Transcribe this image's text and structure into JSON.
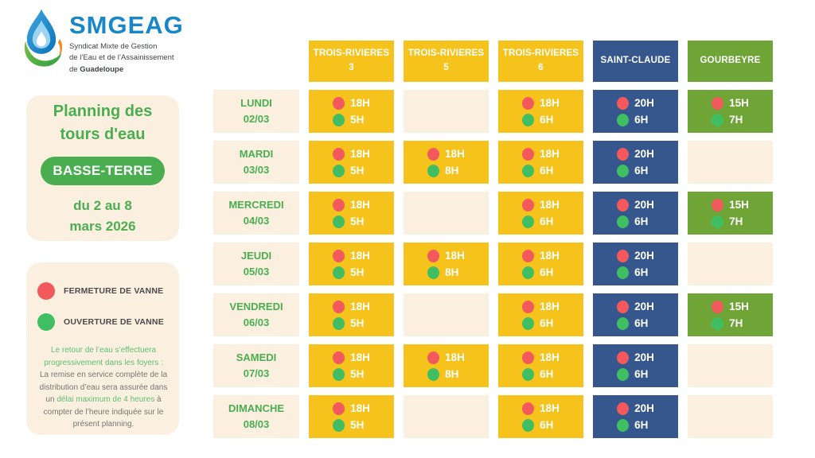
{
  "logo": {
    "brand": "SMGEAG",
    "tagline_lines": [
      "Syndicat Mixte de Gestion",
      "de l’Eau et de l’Assainissement"
    ],
    "tagline_line3_prefix": "de ",
    "tagline_line3_bold": "Guadeloupe"
  },
  "title_panel": {
    "title_line1": "Planning des",
    "title_line2": "tours d'eau",
    "badge": "BASSE-TERRE",
    "date_line1": "du 2 au 8",
    "date_line2": "mars 2026"
  },
  "legend": {
    "items": [
      {
        "label": "FERMETURE DE VANNE",
        "color_key": "red_dot"
      },
      {
        "label": "OUVERTURE DE VANNE",
        "color_key": "green_dot"
      }
    ],
    "note": {
      "green1": "Le retour de l’eau s’effectuera progressivement dans les foyers :",
      "gray1": "La remise en service complète de la distribution d’eau sera assurée dans un ",
      "green2": "délai maximum de 4 heures",
      "gray2": " à compter de l’heure indiquée sur le présent planning."
    }
  },
  "colors": {
    "yellow": "#F6C31C",
    "blue": "#35578E",
    "green_cell": "#6FA436",
    "cream": "#FBF0E0",
    "red_dot": "#F2595C",
    "green_dot": "#3FBE63",
    "accent_green": "#4AAE51",
    "brand_blue": "#1787C8",
    "note_green": "#5BBF72"
  },
  "schedule": {
    "columns": [
      {
        "label_line1": "TROIS-RIVIERES",
        "label_line2": "3",
        "color_key": "yellow"
      },
      {
        "label_line1": "TROIS-RIVIERES",
        "label_line2": "5",
        "color_key": "yellow"
      },
      {
        "label_line1": "TROIS-RIVIERES",
        "label_line2": "6",
        "color_key": "yellow"
      },
      {
        "label_line1": "SAINT-CLAUDE",
        "label_line2": "",
        "color_key": "blue"
      },
      {
        "label_line1": "GOURBEYRE",
        "label_line2": "",
        "color_key": "green_cell"
      }
    ],
    "rows": [
      {
        "day": "LUNDI",
        "date": "02/03",
        "cells": [
          {
            "close": "18H",
            "open": "5H"
          },
          null,
          {
            "close": "18H",
            "open": "6H"
          },
          {
            "close": "20H",
            "open": "6H"
          },
          {
            "close": "15H",
            "open": "7H"
          }
        ]
      },
      {
        "day": "MARDI",
        "date": "03/03",
        "cells": [
          {
            "close": "18H",
            "open": "5H"
          },
          {
            "close": "18H",
            "open": "8H"
          },
          {
            "close": "18H",
            "open": "6H"
          },
          {
            "close": "20H",
            "open": "6H"
          },
          null
        ]
      },
      {
        "day": "MERCREDI",
        "date": "04/03",
        "cells": [
          {
            "close": "18H",
            "open": "5H"
          },
          null,
          {
            "close": "18H",
            "open": "6H"
          },
          {
            "close": "20H",
            "open": "6H"
          },
          {
            "close": "15H",
            "open": "7H"
          }
        ]
      },
      {
        "day": "JEUDI",
        "date": "05/03",
        "cells": [
          {
            "close": "18H",
            "open": "5H"
          },
          {
            "close": "18H",
            "open": "8H"
          },
          {
            "close": "18H",
            "open": "6H"
          },
          {
            "close": "20H",
            "open": "6H"
          },
          null
        ]
      },
      {
        "day": "VENDREDI",
        "date": "06/03",
        "cells": [
          {
            "close": "18H",
            "open": "5H"
          },
          null,
          {
            "close": "18H",
            "open": "6H"
          },
          {
            "close": "20H",
            "open": "6H"
          },
          {
            "close": "15H",
            "open": "7H"
          }
        ]
      },
      {
        "day": "SAMEDI",
        "date": "07/03",
        "cells": [
          {
            "close": "18H",
            "open": "5H"
          },
          {
            "close": "18H",
            "open": "8H"
          },
          {
            "close": "18H",
            "open": "6H"
          },
          {
            "close": "20H",
            "open": "6H"
          },
          null
        ]
      },
      {
        "day": "DIMANCHE",
        "date": "08/03",
        "cells": [
          {
            "close": "18H",
            "open": "5H"
          },
          null,
          {
            "close": "18H",
            "open": "6H"
          },
          {
            "close": "20H",
            "open": "6H"
          },
          null
        ]
      }
    ]
  }
}
